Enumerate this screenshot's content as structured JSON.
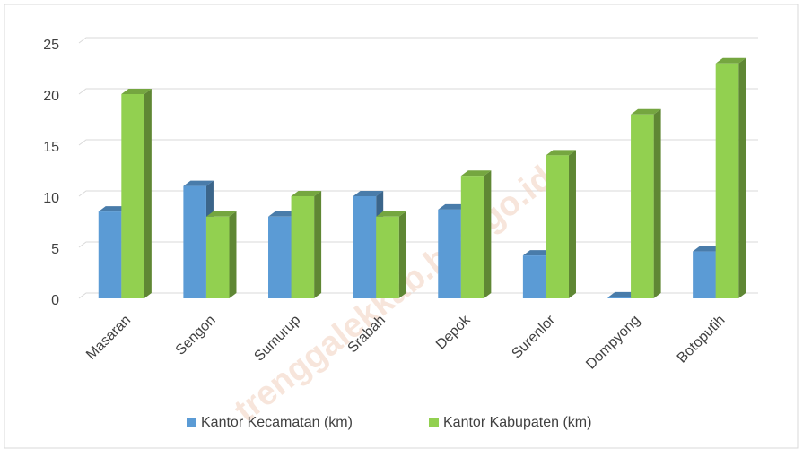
{
  "chart_data": {
    "type": "bar3d",
    "categories": [
      "Masaran",
      "Sengon",
      "Sumurup",
      "Srabah",
      "Depok",
      "Surenlor",
      "Dompyong",
      "Botoputih"
    ],
    "series": [
      {
        "name": "Kantor Kecamatan (km)",
        "color": "#5b9bd5",
        "values": [
          8.5,
          11,
          8,
          10,
          8.7,
          4.2,
          0.1,
          4.6
        ]
      },
      {
        "name": "Kantor Kabupaten (km)",
        "color": "#92d050",
        "values": [
          20,
          8,
          10,
          8,
          12,
          14,
          18,
          23
        ]
      }
    ],
    "ylim": [
      0,
      25
    ],
    "yticks": [
      0,
      5,
      10,
      15,
      20,
      25
    ],
    "grid": true,
    "legend": "bottom",
    "watermark": "trenggalekkab.bps.go.id"
  }
}
